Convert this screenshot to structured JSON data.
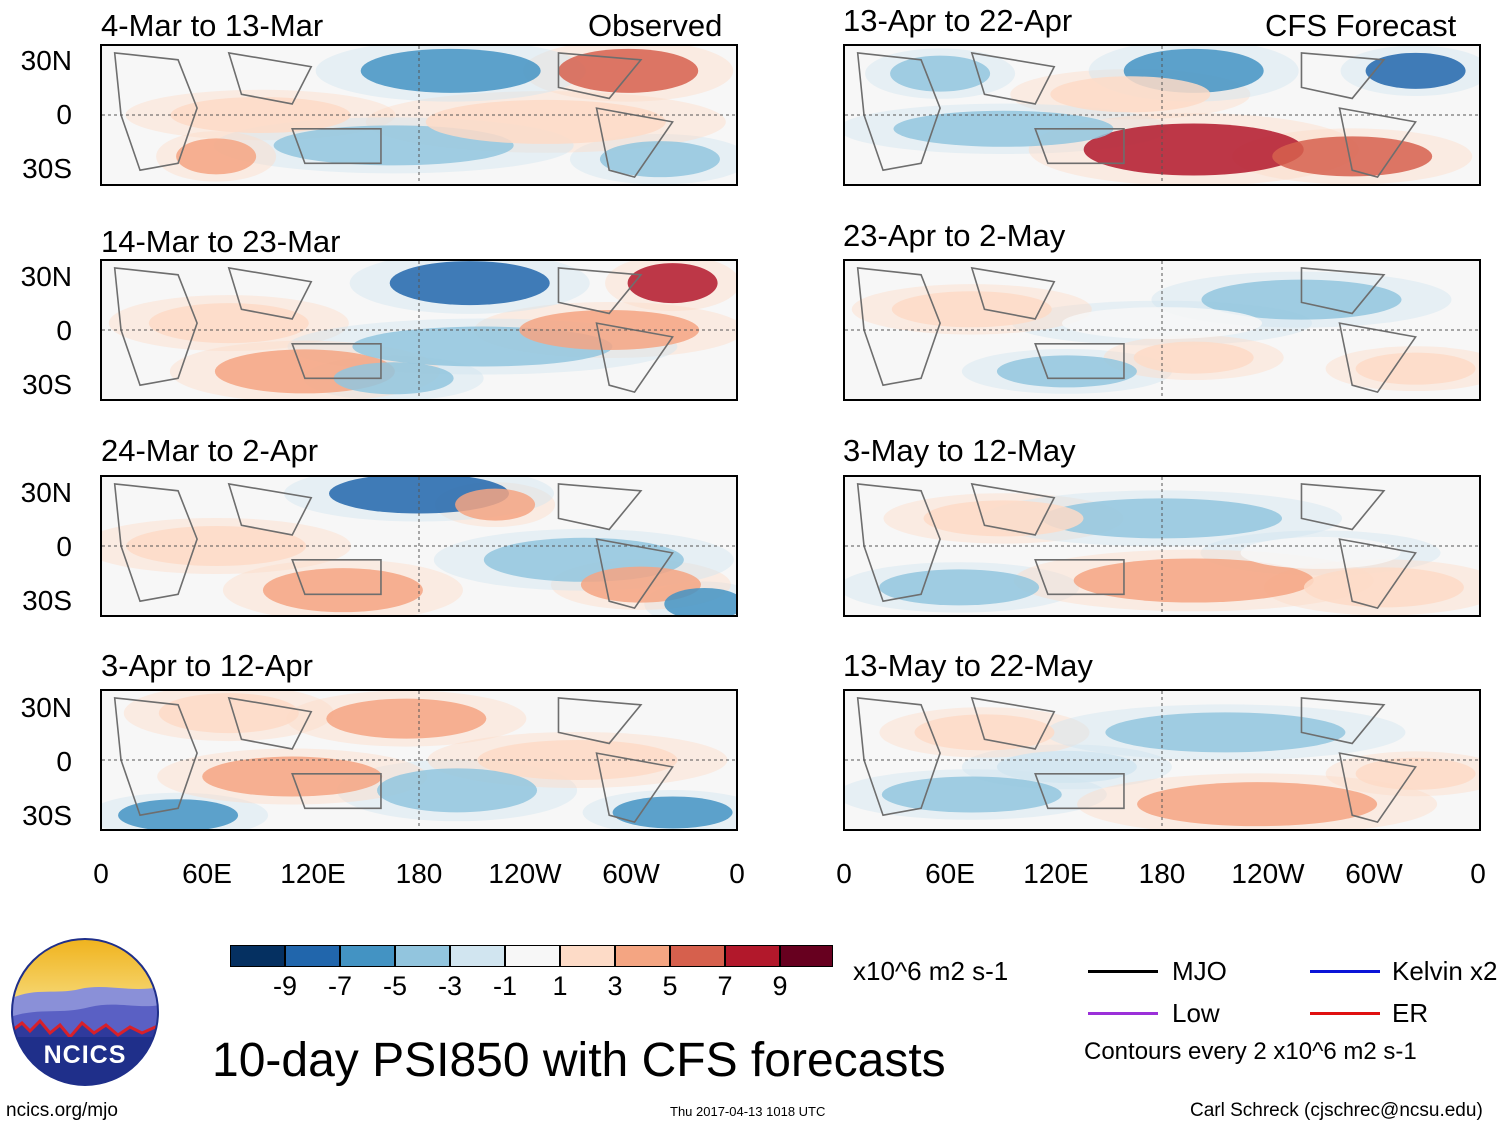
{
  "header": {
    "observed_label": "Observed",
    "forecast_label": "CFS Forecast"
  },
  "panels_left": [
    {
      "title": "4-Mar to 13-Mar"
    },
    {
      "title": "14-Mar to 23-Mar"
    },
    {
      "title": "24-Mar to 2-Apr"
    },
    {
      "title": "3-Apr to 12-Apr"
    }
  ],
  "panels_right": [
    {
      "title": "13-Apr to 22-Apr"
    },
    {
      "title": "23-Apr to 2-May"
    },
    {
      "title": "3-May to 12-May"
    },
    {
      "title": "13-May to 22-May"
    }
  ],
  "axes": {
    "lat_labels": [
      "30N",
      "0",
      "30S"
    ],
    "lon_labels": [
      "0",
      "60E",
      "120E",
      "180",
      "120W",
      "60W",
      "0"
    ]
  },
  "colorbar": {
    "labels": [
      "-9",
      "-7",
      "-5",
      "-3",
      "-1",
      "1",
      "3",
      "5",
      "7",
      "9"
    ],
    "units": "x10^6 m2 s-1",
    "colors": [
      "#053061",
      "#2166ac",
      "#4393c3",
      "#92c5de",
      "#d1e5f0",
      "#f7f7f7",
      "#fddbc7",
      "#f4a582",
      "#d6604d",
      "#b2182b",
      "#67001f"
    ]
  },
  "legend": {
    "mjo": "MJO",
    "kelvin": "Kelvin x2",
    "low": "Low",
    "er": "ER",
    "mjo_color": "#000000",
    "kelvin_color": "#0a14d8",
    "low_color": "#9b30d9",
    "er_color": "#e01010",
    "contours_note": "Contours every 2 x10^6 m2 s-1"
  },
  "logo": {
    "text": "NCICS"
  },
  "main_title": "10-day PSI850 with CFS forecasts",
  "footer": {
    "url": "ncics.org/mjo",
    "timestamp": "Thu 2017-04-13 1018 UTC",
    "credit": "Carl Schreck (cjschrec@ncsu.edu)"
  }
}
